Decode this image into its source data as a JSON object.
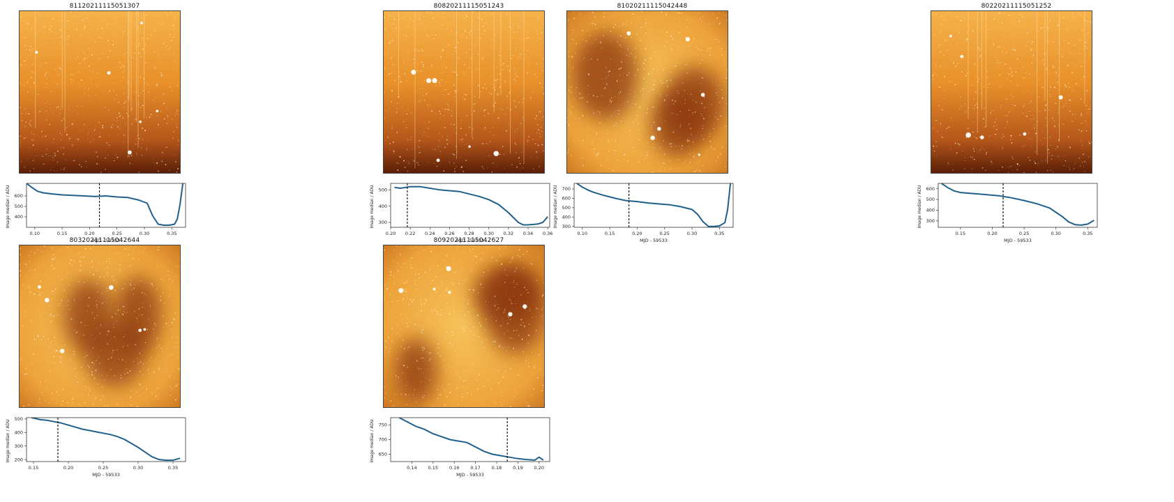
{
  "colors": {
    "line": "#1f5f8b",
    "marker": "#000000"
  },
  "panels": [
    {
      "title": "81120211115051307",
      "image_style": "smooth-gradient-streaks",
      "chart_data": {
        "type": "line",
        "xlabel": "MJD - 59533",
        "ylabel": "Image median / ADU",
        "xlim": [
          0.085,
          0.375
        ],
        "ylim": [
          300,
          720
        ],
        "xticks": [
          0.1,
          0.15,
          0.2,
          0.25,
          0.3,
          0.35
        ],
        "xtick_labels": [
          "0.10",
          "0.15",
          "0.20",
          "0.25",
          "0.30",
          "0.35"
        ],
        "yticks": [
          400,
          500,
          600
        ],
        "ytick_labels": [
          "400",
          "500",
          "600"
        ],
        "marker_x": 0.218,
        "x": [
          0.085,
          0.095,
          0.105,
          0.115,
          0.13,
          0.15,
          0.17,
          0.19,
          0.21,
          0.23,
          0.25,
          0.27,
          0.29,
          0.305,
          0.315,
          0.325,
          0.335,
          0.345,
          0.355,
          0.36,
          0.365,
          0.37
        ],
        "y": [
          720,
          680,
          645,
          630,
          620,
          610,
          605,
          600,
          595,
          600,
          590,
          585,
          560,
          530,
          410,
          330,
          320,
          320,
          330,
          380,
          520,
          720
        ]
      }
    },
    {
      "title": "80820211115051243",
      "image_style": "smooth-gradient-streaks",
      "chart_data": {
        "type": "line",
        "xlabel": "MJD - 59533",
        "ylabel": "Image median / ADU",
        "xlim": [
          0.2,
          0.362
        ],
        "ylim": [
          270,
          540
        ],
        "xticks": [
          0.2,
          0.22,
          0.24,
          0.26,
          0.28,
          0.3,
          0.32,
          0.34,
          0.36
        ],
        "xtick_labels": [
          "0.20",
          "0.22",
          "0.24",
          "0.26",
          "0.28",
          "0.30",
          "0.32",
          "0.34",
          "0.36"
        ],
        "yticks": [
          300,
          400,
          500
        ],
        "ytick_labels": [
          "300",
          "400",
          "500"
        ],
        "marker_x": 0.217,
        "x": [
          0.204,
          0.21,
          0.22,
          0.23,
          0.24,
          0.25,
          0.26,
          0.27,
          0.28,
          0.29,
          0.3,
          0.31,
          0.32,
          0.33,
          0.335,
          0.34,
          0.35,
          0.355,
          0.36
        ],
        "y": [
          515,
          510,
          520,
          520,
          510,
          500,
          495,
          490,
          475,
          460,
          440,
          410,
          360,
          300,
          285,
          285,
          290,
          300,
          335
        ]
      }
    },
    {
      "title": "81020211115042448",
      "image_style": "patchy-nebula",
      "chart_data": {
        "type": "line",
        "xlabel": "MJD - 59533",
        "ylabel": "Image median / ADU",
        "xlim": [
          0.085,
          0.375
        ],
        "ylim": [
          290,
          760
        ],
        "xticks": [
          0.1,
          0.15,
          0.2,
          0.25,
          0.3,
          0.35
        ],
        "xtick_labels": [
          "0.10",
          "0.15",
          "0.20",
          "0.25",
          "0.30",
          "0.35"
        ],
        "yticks": [
          300,
          400,
          500,
          600,
          700
        ],
        "ytick_labels": [
          "300",
          "400",
          "500",
          "600",
          "700"
        ],
        "marker_x": 0.185,
        "x": [
          0.09,
          0.1,
          0.11,
          0.12,
          0.14,
          0.16,
          0.18,
          0.2,
          0.22,
          0.24,
          0.26,
          0.28,
          0.3,
          0.31,
          0.32,
          0.33,
          0.34,
          0.35,
          0.36,
          0.365,
          0.37
        ],
        "y": [
          760,
          720,
          690,
          665,
          630,
          600,
          575,
          565,
          550,
          540,
          530,
          510,
          480,
          430,
          350,
          300,
          300,
          305,
          340,
          480,
          760
        ]
      }
    },
    {
      "title": "80220211115051252",
      "image_style": "smooth-gradient-streaks",
      "chart_data": {
        "type": "line",
        "xlabel": "MJD - 59533",
        "ylabel": "Image median / ADU",
        "xlim": [
          0.115,
          0.365
        ],
        "ylim": [
          240,
          650
        ],
        "xticks": [
          0.15,
          0.2,
          0.25,
          0.3,
          0.35
        ],
        "xtick_labels": [
          "0.15",
          "0.20",
          "0.25",
          "0.30",
          "0.35"
        ],
        "yticks": [
          300,
          400,
          500,
          600
        ],
        "ytick_labels": [
          "300",
          "400",
          "500",
          "600"
        ],
        "marker_x": 0.217,
        "x": [
          0.12,
          0.13,
          0.14,
          0.15,
          0.17,
          0.19,
          0.21,
          0.23,
          0.25,
          0.27,
          0.29,
          0.3,
          0.31,
          0.32,
          0.33,
          0.34,
          0.35,
          0.36
        ],
        "y": [
          650,
          610,
          580,
          565,
          555,
          545,
          535,
          515,
          490,
          460,
          420,
          380,
          340,
          290,
          265,
          260,
          270,
          305
        ]
      }
    },
    {
      "title": "80320211115042644",
      "image_style": "patchy-nebula",
      "chart_data": {
        "type": "line",
        "xlabel": "MJD - 59533",
        "ylabel": "Image median / ADU",
        "xlim": [
          0.14,
          0.368
        ],
        "ylim": [
          185,
          510
        ],
        "xticks": [
          0.15,
          0.2,
          0.25,
          0.3,
          0.35
        ],
        "xtick_labels": [
          "0.15",
          "0.20",
          "0.25",
          "0.30",
          "0.35"
        ],
        "yticks": [
          200,
          300,
          400,
          500
        ],
        "ytick_labels": [
          "200",
          "300",
          "400",
          "500"
        ],
        "marker_x": 0.185,
        "x": [
          0.147,
          0.16,
          0.17,
          0.18,
          0.19,
          0.2,
          0.21,
          0.22,
          0.23,
          0.24,
          0.25,
          0.26,
          0.27,
          0.28,
          0.29,
          0.3,
          0.31,
          0.32,
          0.33,
          0.34,
          0.35,
          0.36
        ],
        "y": [
          510,
          495,
          490,
          480,
          470,
          455,
          440,
          425,
          415,
          405,
          395,
          385,
          370,
          350,
          320,
          290,
          255,
          220,
          200,
          195,
          195,
          210
        ]
      }
    },
    {
      "title": "80920211115042627",
      "image_style": "patchy-nebula",
      "chart_data": {
        "type": "line",
        "xlabel": "MJD - 59533",
        "ylabel": "Image median / ADU",
        "xlim": [
          0.13,
          0.205
        ],
        "ylim": [
          625,
          775
        ],
        "xticks": [
          0.14,
          0.15,
          0.16,
          0.17,
          0.18,
          0.19,
          0.2
        ],
        "xtick_labels": [
          "0.14",
          "0.15",
          "0.16",
          "0.17",
          "0.18",
          "0.19",
          "0.20"
        ],
        "yticks": [
          650,
          700,
          750
        ],
        "ytick_labels": [
          "650",
          "700",
          "750"
        ],
        "marker_x": 0.185,
        "x": [
          0.134,
          0.138,
          0.142,
          0.146,
          0.15,
          0.154,
          0.158,
          0.162,
          0.166,
          0.17,
          0.174,
          0.178,
          0.182,
          0.186,
          0.19,
          0.194,
          0.198,
          0.2,
          0.202
        ],
        "y": [
          775,
          760,
          745,
          735,
          720,
          710,
          700,
          695,
          690,
          675,
          660,
          650,
          645,
          640,
          635,
          632,
          630,
          640,
          630
        ]
      }
    }
  ]
}
